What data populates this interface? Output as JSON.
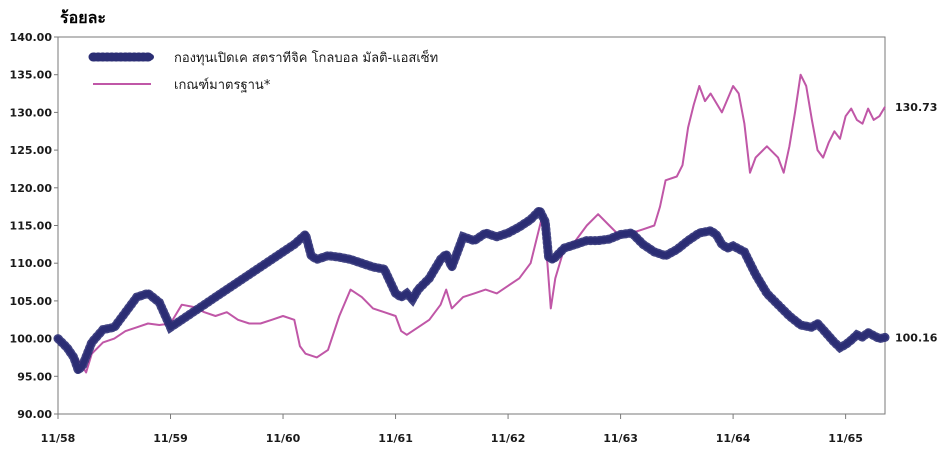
{
  "chart_data": {
    "type": "line",
    "unit_label": "ร้อยละ",
    "ylim": [
      90,
      140
    ],
    "y_ticks": [
      "90.00",
      "95.00",
      "100.00",
      "105.00",
      "110.00",
      "115.00",
      "120.00",
      "125.00",
      "130.00",
      "135.00",
      "140.00"
    ],
    "x_ticks": [
      "11/58",
      "11/59",
      "11/60",
      "11/61",
      "11/62",
      "11/63",
      "11/64",
      "11/65"
    ],
    "xlim": [
      0,
      7.35
    ],
    "legend_position": "top-left",
    "grid": false,
    "series": [
      {
        "name": "กองทุนเปิดเค สตราทีจิค โกลบอล มัลติ-แอสเซ็ท",
        "color": "#2b2e74",
        "end_label": "100.16",
        "points": [
          [
            0.0,
            100.0
          ],
          [
            0.08,
            98.8
          ],
          [
            0.14,
            97.5
          ],
          [
            0.18,
            95.8
          ],
          [
            0.22,
            96.5
          ],
          [
            0.3,
            99.5
          ],
          [
            0.4,
            101.2
          ],
          [
            0.5,
            101.5
          ],
          [
            0.6,
            103.5
          ],
          [
            0.7,
            105.5
          ],
          [
            0.8,
            106.0
          ],
          [
            0.9,
            104.8
          ],
          [
            1.0,
            101.5
          ],
          [
            1.1,
            102.5
          ],
          [
            1.2,
            103.5
          ],
          [
            1.3,
            104.5
          ],
          [
            1.4,
            105.5
          ],
          [
            1.55,
            107.0
          ],
          [
            1.7,
            108.5
          ],
          [
            1.85,
            110.0
          ],
          [
            2.0,
            111.5
          ],
          [
            2.1,
            112.5
          ],
          [
            2.2,
            113.8
          ],
          [
            2.25,
            111.0
          ],
          [
            2.3,
            110.5
          ],
          [
            2.4,
            111.0
          ],
          [
            2.5,
            110.8
          ],
          [
            2.6,
            110.5
          ],
          [
            2.7,
            110.0
          ],
          [
            2.8,
            109.5
          ],
          [
            2.9,
            109.2
          ],
          [
            3.0,
            106.0
          ],
          [
            3.05,
            105.5
          ],
          [
            3.1,
            106.0
          ],
          [
            3.15,
            105.2
          ],
          [
            3.2,
            106.5
          ],
          [
            3.3,
            108.0
          ],
          [
            3.4,
            110.5
          ],
          [
            3.45,
            111.2
          ],
          [
            3.5,
            109.5
          ],
          [
            3.6,
            113.5
          ],
          [
            3.7,
            113.0
          ],
          [
            3.8,
            114.0
          ],
          [
            3.9,
            113.5
          ],
          [
            4.0,
            114.0
          ],
          [
            4.1,
            114.8
          ],
          [
            4.2,
            115.8
          ],
          [
            4.28,
            117.0
          ],
          [
            4.33,
            115.5
          ],
          [
            4.36,
            110.8
          ],
          [
            4.4,
            110.5
          ],
          [
            4.5,
            112.0
          ],
          [
            4.6,
            112.5
          ],
          [
            4.7,
            113.0
          ],
          [
            4.8,
            113.0
          ],
          [
            4.9,
            113.2
          ],
          [
            5.0,
            113.8
          ],
          [
            5.1,
            114.0
          ],
          [
            5.2,
            112.5
          ],
          [
            5.3,
            111.5
          ],
          [
            5.4,
            111.0
          ],
          [
            5.5,
            111.8
          ],
          [
            5.6,
            113.0
          ],
          [
            5.7,
            114.0
          ],
          [
            5.8,
            114.3
          ],
          [
            5.85,
            113.8
          ],
          [
            5.9,
            112.5
          ],
          [
            5.95,
            112.0
          ],
          [
            6.0,
            112.3
          ],
          [
            6.1,
            111.5
          ],
          [
            6.2,
            108.5
          ],
          [
            6.3,
            106.0
          ],
          [
            6.4,
            104.5
          ],
          [
            6.5,
            103.0
          ],
          [
            6.6,
            101.8
          ],
          [
            6.7,
            101.5
          ],
          [
            6.75,
            102.0
          ],
          [
            6.8,
            101.2
          ],
          [
            6.9,
            99.5
          ],
          [
            6.95,
            98.8
          ],
          [
            7.0,
            99.2
          ],
          [
            7.05,
            99.8
          ],
          [
            7.1,
            100.5
          ],
          [
            7.15,
            100.2
          ],
          [
            7.2,
            100.8
          ],
          [
            7.25,
            100.4
          ],
          [
            7.3,
            100.0
          ],
          [
            7.35,
            100.16
          ]
        ]
      },
      {
        "name": "เกณฑ์มาตรฐาน*",
        "color": "#c057a7",
        "end_label": "130.73",
        "points": [
          [
            0.0,
            100.0
          ],
          [
            0.1,
            98.5
          ],
          [
            0.15,
            97.5
          ],
          [
            0.2,
            96.8
          ],
          [
            0.25,
            95.5
          ],
          [
            0.3,
            98.0
          ],
          [
            0.4,
            99.5
          ],
          [
            0.5,
            100.0
          ],
          [
            0.6,
            101.0
          ],
          [
            0.7,
            101.5
          ],
          [
            0.8,
            102.0
          ],
          [
            0.9,
            101.8
          ],
          [
            1.0,
            102.0
          ],
          [
            1.1,
            104.5
          ],
          [
            1.2,
            104.2
          ],
          [
            1.3,
            103.5
          ],
          [
            1.4,
            103.0
          ],
          [
            1.5,
            103.5
          ],
          [
            1.6,
            102.5
          ],
          [
            1.7,
            102.0
          ],
          [
            1.8,
            102.0
          ],
          [
            1.9,
            102.5
          ],
          [
            2.0,
            103.0
          ],
          [
            2.1,
            102.5
          ],
          [
            2.15,
            99.0
          ],
          [
            2.2,
            98.0
          ],
          [
            2.3,
            97.5
          ],
          [
            2.4,
            98.5
          ],
          [
            2.5,
            103.0
          ],
          [
            2.6,
            106.5
          ],
          [
            2.7,
            105.5
          ],
          [
            2.8,
            104.0
          ],
          [
            2.9,
            103.5
          ],
          [
            3.0,
            103.0
          ],
          [
            3.05,
            101.0
          ],
          [
            3.1,
            100.5
          ],
          [
            3.2,
            101.5
          ],
          [
            3.3,
            102.5
          ],
          [
            3.4,
            104.5
          ],
          [
            3.45,
            106.5
          ],
          [
            3.5,
            104.0
          ],
          [
            3.6,
            105.5
          ],
          [
            3.7,
            106.0
          ],
          [
            3.8,
            106.5
          ],
          [
            3.9,
            106.0
          ],
          [
            4.0,
            107.0
          ],
          [
            4.1,
            108.0
          ],
          [
            4.2,
            110.0
          ],
          [
            4.3,
            116.0
          ],
          [
            4.35,
            110.0
          ],
          [
            4.38,
            104.0
          ],
          [
            4.42,
            108.0
          ],
          [
            4.5,
            112.0
          ],
          [
            4.6,
            113.0
          ],
          [
            4.7,
            115.0
          ],
          [
            4.8,
            116.5
          ],
          [
            4.9,
            115.0
          ],
          [
            5.0,
            113.5
          ],
          [
            5.1,
            114.0
          ],
          [
            5.2,
            114.5
          ],
          [
            5.3,
            115.0
          ],
          [
            5.35,
            117.5
          ],
          [
            5.4,
            121.0
          ],
          [
            5.5,
            121.5
          ],
          [
            5.55,
            123.0
          ],
          [
            5.6,
            128.0
          ],
          [
            5.65,
            131.0
          ],
          [
            5.7,
            133.5
          ],
          [
            5.75,
            131.5
          ],
          [
            5.8,
            132.5
          ],
          [
            5.9,
            130.0
          ],
          [
            6.0,
            133.5
          ],
          [
            6.05,
            132.5
          ],
          [
            6.1,
            128.5
          ],
          [
            6.15,
            122.0
          ],
          [
            6.2,
            124.0
          ],
          [
            6.3,
            125.5
          ],
          [
            6.4,
            124.0
          ],
          [
            6.45,
            122.0
          ],
          [
            6.5,
            125.5
          ],
          [
            6.55,
            130.0
          ],
          [
            6.6,
            135.0
          ],
          [
            6.65,
            133.5
          ],
          [
            6.7,
            129.0
          ],
          [
            6.75,
            125.0
          ],
          [
            6.8,
            124.0
          ],
          [
            6.85,
            126.0
          ],
          [
            6.9,
            127.5
          ],
          [
            6.95,
            126.5
          ],
          [
            7.0,
            129.5
          ],
          [
            7.05,
            130.5
          ],
          [
            7.1,
            129.0
          ],
          [
            7.15,
            128.5
          ],
          [
            7.2,
            130.5
          ],
          [
            7.25,
            129.0
          ],
          [
            7.3,
            129.5
          ],
          [
            7.35,
            130.73
          ]
        ]
      }
    ]
  }
}
